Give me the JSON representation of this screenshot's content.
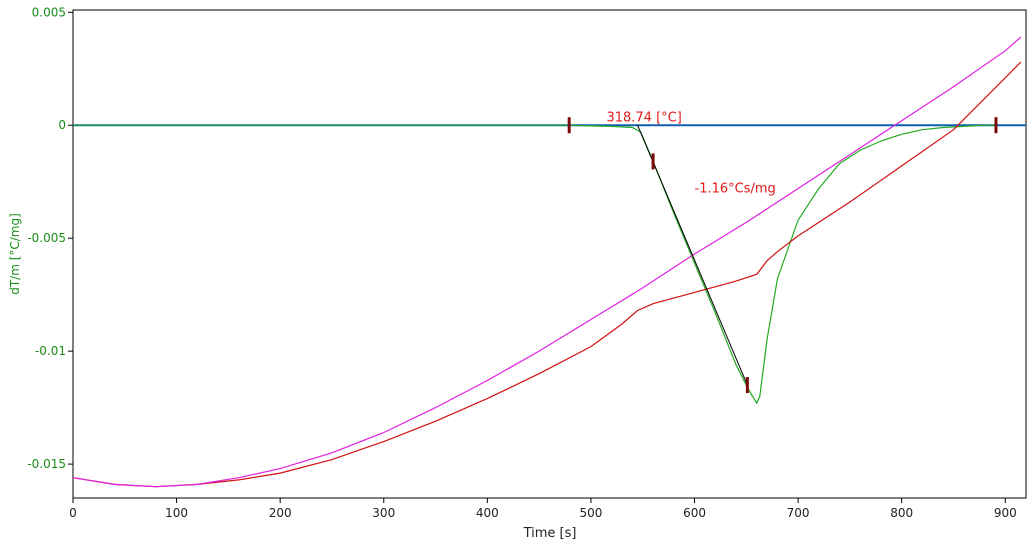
{
  "chart_data": {
    "type": "line",
    "title": "",
    "xlabel": "Time [s]",
    "ylabel": "dT/m  [°C/mg]",
    "xlim": [
      0,
      920
    ],
    "ylim": [
      -0.0165,
      0.0051
    ],
    "x_ticks": [
      "0",
      "100",
      "200",
      "300",
      "400",
      "500",
      "600",
      "700",
      "800",
      "900"
    ],
    "y_ticks": [
      "0.005",
      "0",
      "-0.005",
      "-0.01",
      "-0.015"
    ],
    "y_tick_values": [
      0.005,
      0,
      -0.005,
      -0.01,
      -0.015
    ],
    "grid": false,
    "annotations": [
      {
        "text": "318.74 [°C]",
        "x": 515,
        "y": 0.00035
      },
      {
        "text": "-1.16°Cs/mg",
        "x": 600,
        "y": -0.0028
      }
    ],
    "markers": [
      {
        "x": 479,
        "y": 0.0
      },
      {
        "x": 560,
        "y": -0.0016
      },
      {
        "x": 651,
        "y": -0.0115
      },
      {
        "x": 891,
        "y": 0.0
      }
    ],
    "series": [
      {
        "color": "#1060b0",
        "x": [
          0,
          920
        ],
        "y": [
          0.0,
          0.0
        ]
      },
      {
        "color": "#22aa22",
        "x": [
          0,
          470,
          520,
          540,
          548,
          560,
          580,
          600,
          620,
          640,
          651,
          656,
          660,
          663,
          670,
          680,
          700,
          720,
          740,
          760,
          780,
          800,
          820,
          840,
          860,
          880,
          891
        ],
        "y": [
          0.0,
          0.0,
          -5e-05,
          -0.0001,
          -0.0003,
          -0.0016,
          -0.0039,
          -0.0061,
          -0.0083,
          -0.0106,
          -0.0116,
          -0.012,
          -0.0123,
          -0.012,
          -0.0095,
          -0.0068,
          -0.0042,
          -0.0028,
          -0.0017,
          -0.0011,
          -0.0007,
          -0.0004,
          -0.0002,
          -0.0001,
          -5e-05,
          0.0,
          0.0
        ]
      },
      {
        "color": "#d01010",
        "x": [
          0,
          40,
          80,
          120,
          160,
          200,
          250,
          300,
          350,
          400,
          450,
          500,
          530,
          545,
          560,
          600,
          640,
          660,
          665,
          670,
          680,
          700,
          750,
          800,
          850,
          900,
          915
        ],
        "y": [
          -0.0156,
          -0.0159,
          -0.016,
          -0.0159,
          -0.0157,
          -0.0154,
          -0.0148,
          -0.014,
          -0.0131,
          -0.0121,
          -0.011,
          -0.0098,
          -0.0088,
          -0.0082,
          -0.0079,
          -0.0074,
          -0.0069,
          -0.0066,
          -0.0063,
          -0.006,
          -0.0056,
          -0.0049,
          -0.0034,
          -0.0018,
          -0.0002,
          0.0021,
          0.0028
        ]
      },
      {
        "color": "#e020e0",
        "x": [
          0,
          40,
          80,
          120,
          160,
          200,
          250,
          300,
          350,
          400,
          450,
          500,
          550,
          600,
          650,
          700,
          750,
          800,
          850,
          900,
          915
        ],
        "y": [
          -0.0156,
          -0.0159,
          -0.016,
          -0.0159,
          -0.0156,
          -0.0152,
          -0.0145,
          -0.0136,
          -0.0125,
          -0.0113,
          -0.01,
          -0.0086,
          -0.0072,
          -0.0057,
          -0.0043,
          -0.0028,
          -0.0013,
          0.0002,
          0.0017,
          0.0033,
          0.0039
        ]
      }
    ]
  }
}
